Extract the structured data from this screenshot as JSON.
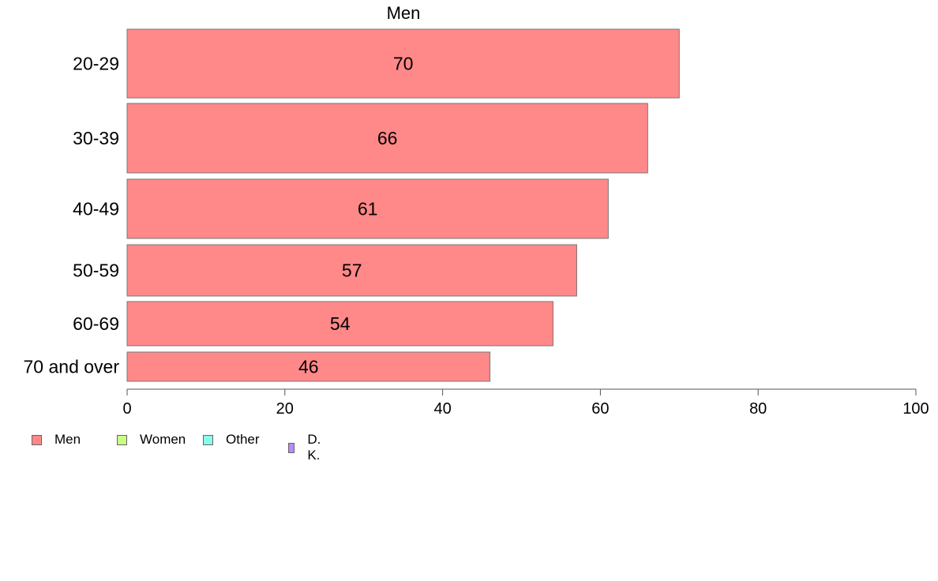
{
  "chart_data": {
    "type": "bar",
    "orientation": "horizontal",
    "title": "Men",
    "categories": [
      "20-29",
      "30-39",
      "40-49",
      "50-59",
      "60-69",
      "70 and over"
    ],
    "series": [
      {
        "name": "Men",
        "values": [
          70,
          66,
          61,
          57,
          54,
          46
        ]
      }
    ],
    "xlim": [
      0,
      100
    ],
    "x_ticks": [
      "0",
      "20",
      "40",
      "60",
      "80",
      "100"
    ],
    "grid": false,
    "legend": {
      "placement": "bottom-left",
      "entries": [
        {
          "label": "Men",
          "color": "#ff8888"
        },
        {
          "label": "Women",
          "color": "#ccff88"
        },
        {
          "label": "Other",
          "color": "#88ffee"
        },
        {
          "label": "D. K.",
          "color": "#bb88ff"
        }
      ]
    },
    "colors": {
      "bar_fill": "#ff8888",
      "bar_stroke": "#777777",
      "axis": "#555555"
    }
  }
}
